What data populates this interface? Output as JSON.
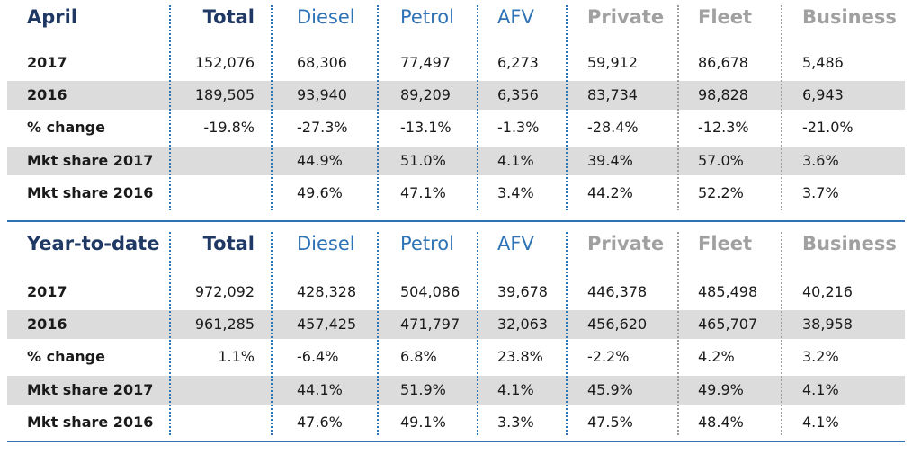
{
  "colors": {
    "title": "#1f3864",
    "accent": "#2e73b5",
    "grey_header": "#a0a0a0",
    "shade": "#dcdcdc"
  },
  "columns": [
    "Total",
    "Diesel",
    "Petrol",
    "AFV",
    "Private",
    "Fleet",
    "Business"
  ],
  "sections": [
    {
      "title": "April",
      "rows": [
        {
          "label": "2017",
          "values": [
            "152,076",
            "68,306",
            "77,497",
            "6,273",
            "59,912",
            "86,678",
            "5,486"
          ]
        },
        {
          "label": "2016",
          "values": [
            "189,505",
            "93,940",
            "89,209",
            "6,356",
            "83,734",
            "98,828",
            "6,943"
          ]
        },
        {
          "label": "% change",
          "values": [
            "-19.8%",
            "-27.3%",
            "-13.1%",
            "-1.3%",
            "-28.4%",
            "-12.3%",
            "-21.0%"
          ]
        },
        {
          "label": "Mkt share 2017",
          "values": [
            "",
            "44.9%",
            "51.0%",
            "4.1%",
            "39.4%",
            "57.0%",
            "3.6%"
          ]
        },
        {
          "label": "Mkt share 2016",
          "values": [
            "",
            "49.6%",
            "47.1%",
            "3.4%",
            "44.2%",
            "52.2%",
            "3.7%"
          ]
        }
      ]
    },
    {
      "title": "Year-to-date",
      "rows": [
        {
          "label": "2017",
          "values": [
            "972,092",
            "428,328",
            "504,086",
            "39,678",
            "446,378",
            "485,498",
            "40,216"
          ]
        },
        {
          "label": "2016",
          "values": [
            "961,285",
            "457,425",
            "471,797",
            "32,063",
            "456,620",
            "465,707",
            "38,958"
          ]
        },
        {
          "label": "% change",
          "values": [
            "1.1%",
            "-6.4%",
            "6.8%",
            "23.8%",
            "-2.2%",
            "4.2%",
            "3.2%"
          ]
        },
        {
          "label": "Mkt share 2017",
          "values": [
            "",
            "44.1%",
            "51.9%",
            "4.1%",
            "45.9%",
            "49.9%",
            "4.1%"
          ]
        },
        {
          "label": "Mkt share 2016",
          "values": [
            "",
            "47.6%",
            "49.1%",
            "3.3%",
            "47.5%",
            "48.4%",
            "4.1%"
          ]
        }
      ]
    }
  ]
}
